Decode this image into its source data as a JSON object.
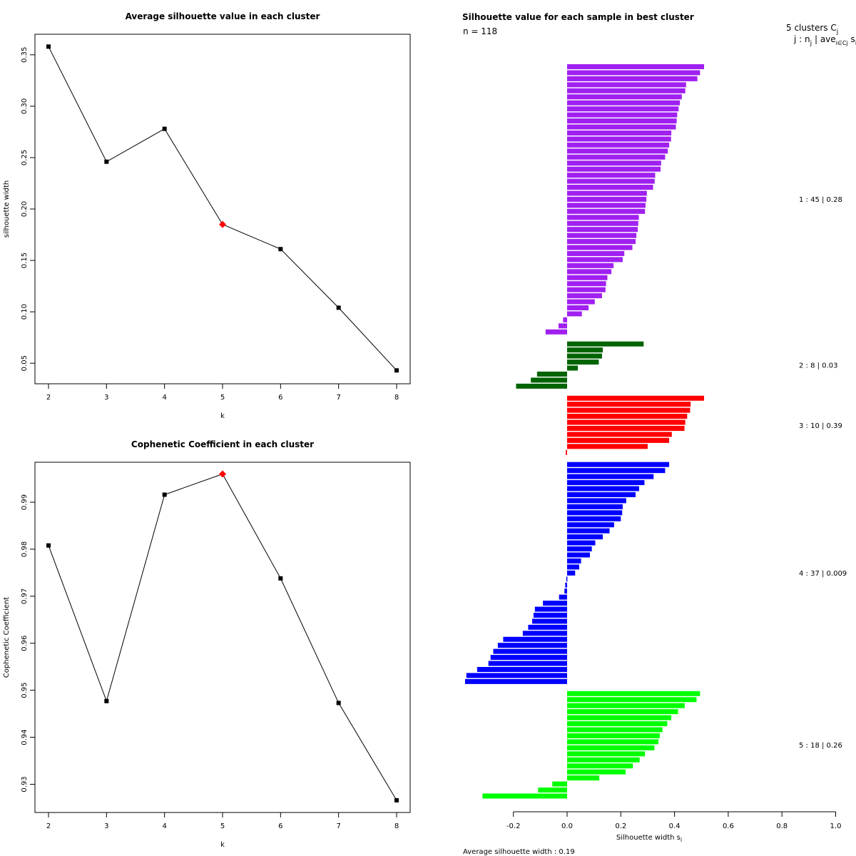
{
  "chart_data": [
    {
      "type": "line",
      "title": "Average silhouette value in each cluster",
      "xlabel": "k",
      "ylabel": "silhouette width",
      "x": [
        2,
        3,
        4,
        5,
        6,
        7,
        8
      ],
      "values": [
        0.358,
        0.246,
        0.278,
        0.185,
        0.161,
        0.104,
        0.043
      ],
      "highlight_x": 5,
      "xticks": [
        "2",
        "3",
        "4",
        "5",
        "6",
        "7",
        "8"
      ],
      "yticks": [
        "0.05",
        "0.10",
        "0.15",
        "0.20",
        "0.25",
        "0.30",
        "0.35"
      ],
      "xlim": [
        2,
        8
      ],
      "ylim": [
        0.03,
        0.37
      ],
      "colors": {
        "line": "#000000",
        "point": "#000000",
        "highlight": "#ff0000"
      }
    },
    {
      "type": "line",
      "title": "Cophenetic Coefficient in each cluster",
      "xlabel": "k",
      "ylabel": "Cophenetic Coefficient",
      "x": [
        2,
        3,
        4,
        5,
        6,
        7,
        8
      ],
      "values": [
        0.9808,
        0.9477,
        0.9916,
        0.996,
        0.9738,
        0.9473,
        0.9266
      ],
      "highlight_x": 5,
      "xticks": [
        "2",
        "3",
        "4",
        "5",
        "6",
        "7",
        "8"
      ],
      "yticks": [
        "0.93",
        "0.94",
        "0.95",
        "0.96",
        "0.97",
        "0.98",
        "0.99"
      ],
      "xlim": [
        2,
        8
      ],
      "ylim": [
        0.924,
        0.9985
      ],
      "colors": {
        "line": "#000000",
        "point": "#000000",
        "highlight": "#ff0000"
      }
    },
    {
      "type": "bar",
      "orientation": "horizontal",
      "title": "Silhouette value for each sample in best cluster",
      "n_label": "n = 118",
      "xlabel": "Silhouette width s",
      "xlabel_sub": "i",
      "xticks": [
        "-0.2",
        "0.0",
        "0.2",
        "0.4",
        "0.6",
        "0.8",
        "1.0"
      ],
      "xlim": [
        -0.38,
        1.0
      ],
      "footer": "Average silhouette width :  0.19",
      "legend_header": "5  clusters  C",
      "legend_header_sub": "j",
      "legend_sub": "j :  n",
      "legend_sub_sub": "j",
      "legend_sub_rest": " | ave",
      "legend_sub_sub2": "i∈Cj",
      "legend_sub_end": " s",
      "legend_sub_sub3": "i",
      "clusters": [
        {
          "label": "1 :  45  |  0.28",
          "color": "#a020f0",
          "values": [
            0.51,
            0.495,
            0.485,
            0.443,
            0.44,
            0.427,
            0.42,
            0.415,
            0.41,
            0.408,
            0.405,
            0.388,
            0.387,
            0.38,
            0.375,
            0.365,
            0.35,
            0.348,
            0.328,
            0.326,
            0.32,
            0.297,
            0.295,
            0.292,
            0.29,
            0.267,
            0.265,
            0.263,
            0.258,
            0.255,
            0.243,
            0.213,
            0.207,
            0.173,
            0.165,
            0.15,
            0.145,
            0.143,
            0.13,
            0.103,
            0.08,
            0.055,
            -0.015,
            -0.032,
            -0.08
          ]
        },
        {
          "label": "2 :   8  |  0.03",
          "color": "#006400",
          "values": [
            0.285,
            0.133,
            0.13,
            0.118,
            0.04,
            -0.112,
            -0.135,
            -0.19
          ]
        },
        {
          "label": "3 :  10  |  0.39",
          "color": "#ff0000",
          "values": [
            0.51,
            0.46,
            0.458,
            0.447,
            0.44,
            0.437,
            0.39,
            0.38,
            0.3,
            -0.005
          ]
        },
        {
          "label": "4 :  37  |  0.009",
          "color": "#0000ff",
          "values": [
            0.38,
            0.365,
            0.322,
            0.288,
            0.268,
            0.255,
            0.22,
            0.207,
            0.205,
            0.2,
            0.175,
            0.158,
            0.133,
            0.105,
            0.092,
            0.085,
            0.052,
            0.045,
            0.03,
            -0.003,
            -0.007,
            -0.01,
            -0.03,
            -0.09,
            -0.12,
            -0.125,
            -0.13,
            -0.145,
            -0.165,
            -0.238,
            -0.258,
            -0.275,
            -0.285,
            -0.293,
            -0.335,
            -0.375,
            -0.38
          ]
        },
        {
          "label": "5 :  18  |  0.26",
          "color": "#00ff00",
          "values": [
            0.495,
            0.482,
            0.438,
            0.413,
            0.388,
            0.373,
            0.355,
            0.345,
            0.34,
            0.325,
            0.29,
            0.27,
            0.245,
            0.218,
            0.12,
            -0.055,
            -0.108,
            -0.315
          ]
        }
      ]
    }
  ]
}
